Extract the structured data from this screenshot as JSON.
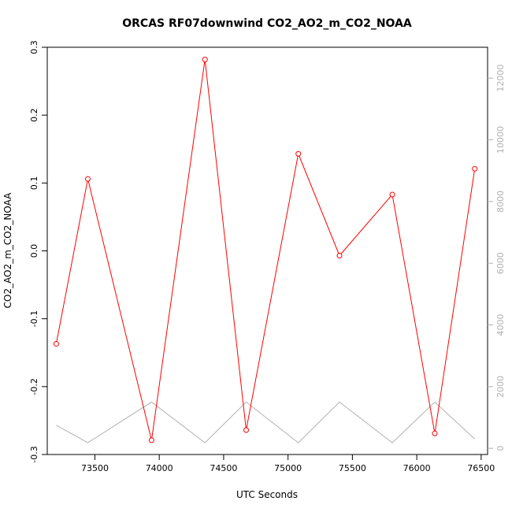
{
  "chart_data": {
    "type": "line",
    "title": "ORCAS RF07downwind CO2_AO2_m_CO2_NOAA",
    "xlabel": "UTC Seconds",
    "ylabel": "CO2_AO2_m_CO2_NOAA",
    "xlim": [
      73130,
      76550
    ],
    "ylim": [
      -0.3,
      0.3
    ],
    "y2lim": [
      -200,
      13000
    ],
    "x_ticks": [
      73500,
      74000,
      74500,
      75000,
      75500,
      76000,
      76500
    ],
    "y_ticks": [
      -0.3,
      -0.2,
      -0.1,
      0.0,
      0.1,
      0.2,
      0.3
    ],
    "y_tick_labels": [
      "-0.3",
      "-0.2",
      "-0.1",
      "0.0",
      "0.1",
      "0.2",
      "0.3"
    ],
    "y2_ticks": [
      0,
      2000,
      4000,
      6000,
      8000,
      10000,
      12000
    ],
    "grid": false,
    "series": [
      {
        "color": "#ff0000",
        "marker": "open-circle",
        "axis": "left",
        "x": [
          73200,
          73445,
          73940,
          74355,
          74675,
          75080,
          75400,
          75810,
          76140,
          76450
        ],
        "y": [
          -0.137,
          0.106,
          -0.279,
          0.282,
          -0.264,
          0.143,
          -0.007,
          0.083,
          -0.269,
          0.121
        ]
      },
      {
        "color": "#b0b0b0",
        "marker": "none",
        "axis": "right",
        "x": [
          73200,
          73445,
          73940,
          74355,
          74675,
          75080,
          75400,
          75810,
          76140,
          76450
        ],
        "y": [
          750,
          180,
          1500,
          180,
          1500,
          180,
          1500,
          180,
          1500,
          300
        ]
      }
    ]
  }
}
